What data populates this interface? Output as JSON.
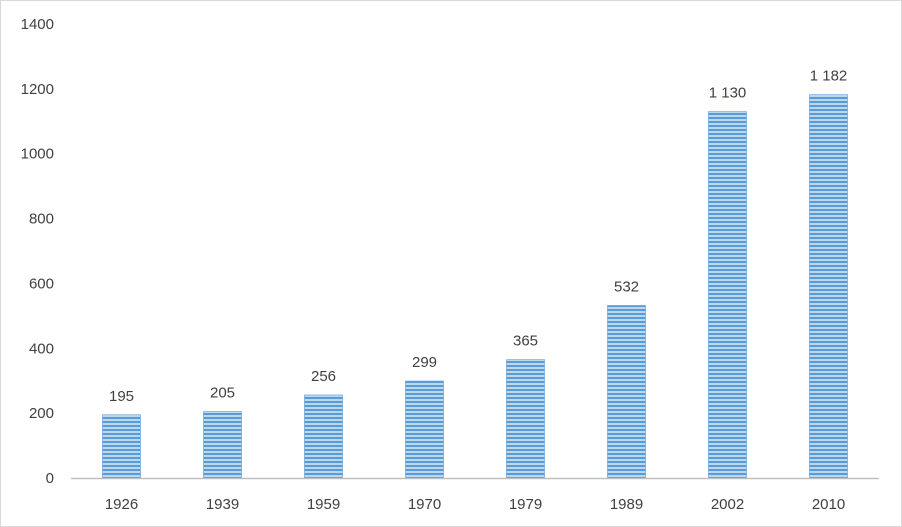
{
  "chart_data": {
    "type": "bar",
    "title": "",
    "xlabel": "",
    "ylabel": "",
    "categories": [
      "1926",
      "1939",
      "1959",
      "1970",
      "1979",
      "1989",
      "2002",
      "2010"
    ],
    "values": [
      195,
      205,
      256,
      299,
      365,
      532,
      1130,
      1182
    ],
    "data_labels": [
      "195",
      "205",
      "256",
      "299",
      "365",
      "532",
      "1 130",
      "1 182"
    ],
    "ylim": [
      0,
      1400
    ],
    "yticks": [
      "0",
      "200",
      "400",
      "600",
      "800",
      "1000",
      "1200",
      "1400"
    ],
    "grid": false,
    "legend": "none",
    "bar_fill": "striped-horizontal",
    "colors": {
      "bar_light": "#bdd7ee",
      "bar_stripe": "#5b9bd5",
      "axis": "#bfbfbf",
      "text": "#404040"
    }
  }
}
